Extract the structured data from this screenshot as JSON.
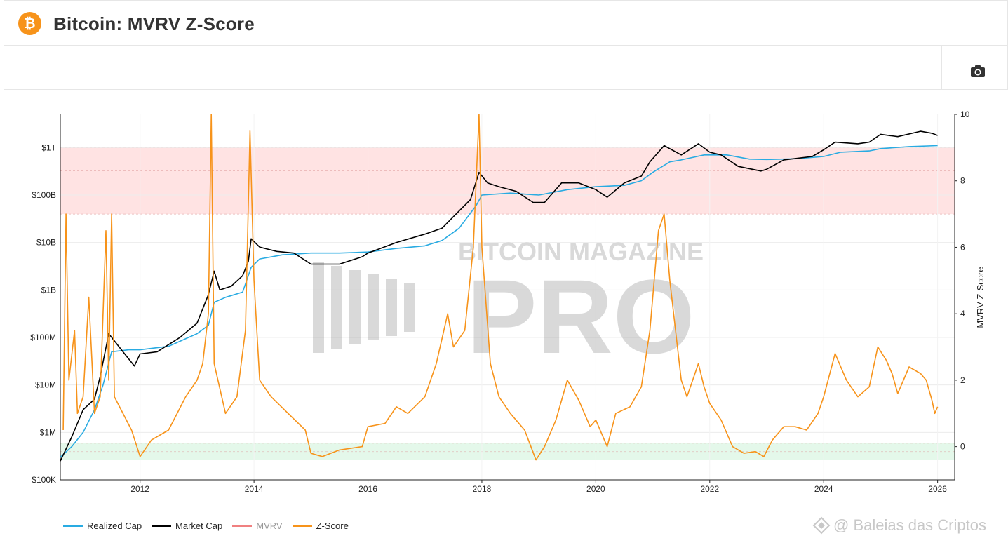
{
  "page": {
    "title": "Bitcoin: MVRV Z-Score",
    "logo_icon": "bitcoin-icon",
    "camera_icon": "camera-icon"
  },
  "colors": {
    "realized_cap": "#29abe2",
    "market_cap": "#000000",
    "mvrv": "#f08080",
    "z_score": "#f7931a",
    "upper_band": "#ffe3e3",
    "lower_band": "#e4f8ea",
    "brand": "#f7931a"
  },
  "watermark": {
    "line1": "BITCOIN MAGAZINE",
    "line2": "PRO"
  },
  "credit": {
    "text": "@ Baleias das Criptos",
    "icon": "diamond-icon"
  },
  "legend": [
    {
      "label": "Realized Cap",
      "color": "#29abe2",
      "active": true
    },
    {
      "label": "Market Cap",
      "color": "#000000",
      "active": true
    },
    {
      "label": "MVRV",
      "color": "#f08080",
      "active": false
    },
    {
      "label": "Z-Score",
      "color": "#f7931a",
      "active": true
    }
  ],
  "chart_data": {
    "type": "line",
    "xlim": [
      2010.6,
      2026.3
    ],
    "x_ticks": [
      {
        "value": 2012,
        "label": "2012"
      },
      {
        "value": 2014,
        "label": "2014"
      },
      {
        "value": 2016,
        "label": "2016"
      },
      {
        "value": 2018,
        "label": "2018"
      },
      {
        "value": 2020,
        "label": "2020"
      },
      {
        "value": 2022,
        "label": "2022"
      },
      {
        "value": 2024,
        "label": "2024"
      },
      {
        "value": 2026,
        "label": "2026"
      }
    ],
    "y_left": {
      "scale": "log",
      "ylim": [
        100000,
        5000000000000
      ],
      "ticks": [
        {
          "value": 100000,
          "label": "$100K"
        },
        {
          "value": 1000000,
          "label": "$1M"
        },
        {
          "value": 10000000,
          "label": "$10M"
        },
        {
          "value": 100000000,
          "label": "$100M"
        },
        {
          "value": 1000000000,
          "label": "$1B"
        },
        {
          "value": 10000000000,
          "label": "$10B"
        },
        {
          "value": 100000000000,
          "label": "$100B"
        },
        {
          "value": 1000000000000,
          "label": "$1T"
        }
      ]
    },
    "y_right": {
      "label": "MVRV Z-Score",
      "scale": "linear",
      "ylim": [
        -1,
        10
      ],
      "ticks": [
        {
          "value": 0,
          "label": "0"
        },
        {
          "value": 2,
          "label": "2"
        },
        {
          "value": 4,
          "label": "4"
        },
        {
          "value": 6,
          "label": "6"
        },
        {
          "value": 8,
          "label": "8"
        },
        {
          "value": 10,
          "label": "10"
        }
      ]
    },
    "bands": [
      {
        "name": "upper",
        "from": 7,
        "to": 9,
        "mid": 8.3,
        "color": "#ffe3e3"
      },
      {
        "name": "lower",
        "from": -0.4,
        "to": 0.1,
        "mid": -0.15,
        "color": "#e4f8ea"
      }
    ],
    "grid": true,
    "legend_position": "bottom-left",
    "series": [
      {
        "name": "Realized Cap",
        "axis": "left",
        "color": "#29abe2",
        "points": [
          [
            2010.6,
            300000
          ],
          [
            2010.8,
            500000
          ],
          [
            2011.0,
            1000000
          ],
          [
            2011.2,
            3000000
          ],
          [
            2011.35,
            10000000
          ],
          [
            2011.5,
            50000000
          ],
          [
            2011.8,
            55000000
          ],
          [
            2012.0,
            55000000
          ],
          [
            2012.5,
            65000000
          ],
          [
            2013.0,
            120000000
          ],
          [
            2013.2,
            180000000
          ],
          [
            2013.3,
            550000000
          ],
          [
            2013.5,
            700000000
          ],
          [
            2013.8,
            900000000
          ],
          [
            2013.95,
            3000000000
          ],
          [
            2014.1,
            4500000000
          ],
          [
            2014.5,
            5500000000
          ],
          [
            2015.0,
            6000000000
          ],
          [
            2015.5,
            6000000000
          ],
          [
            2016.0,
            6300000000
          ],
          [
            2016.5,
            7500000000
          ],
          [
            2017.0,
            8500000000
          ],
          [
            2017.3,
            11000000000
          ],
          [
            2017.6,
            20000000000
          ],
          [
            2017.9,
            60000000000
          ],
          [
            2018.0,
            100000000000
          ],
          [
            2018.5,
            110000000000
          ],
          [
            2019.0,
            100000000000
          ],
          [
            2019.5,
            130000000000
          ],
          [
            2020.0,
            150000000000
          ],
          [
            2020.5,
            160000000000
          ],
          [
            2020.8,
            200000000000
          ],
          [
            2021.0,
            300000000000
          ],
          [
            2021.3,
            500000000000
          ],
          [
            2021.5,
            550000000000
          ],
          [
            2021.9,
            700000000000
          ],
          [
            2022.3,
            700000000000
          ],
          [
            2022.7,
            570000000000
          ],
          [
            2023.0,
            560000000000
          ],
          [
            2023.5,
            580000000000
          ],
          [
            2024.0,
            650000000000
          ],
          [
            2024.3,
            800000000000
          ],
          [
            2024.8,
            850000000000
          ],
          [
            2025.0,
            950000000000
          ],
          [
            2025.5,
            1050000000000
          ],
          [
            2026.0,
            1100000000000
          ]
        ]
      },
      {
        "name": "Market Cap",
        "axis": "left",
        "color": "#000000",
        "points": [
          [
            2010.6,
            250000
          ],
          [
            2010.8,
            800000
          ],
          [
            2011.0,
            3000000
          ],
          [
            2011.2,
            5000000
          ],
          [
            2011.3,
            15000000
          ],
          [
            2011.45,
            120000000
          ],
          [
            2011.7,
            50000000
          ],
          [
            2011.9,
            25000000
          ],
          [
            2012.0,
            45000000
          ],
          [
            2012.3,
            50000000
          ],
          [
            2012.7,
            100000000
          ],
          [
            2013.0,
            200000000
          ],
          [
            2013.2,
            800000000
          ],
          [
            2013.3,
            2500000000
          ],
          [
            2013.4,
            1000000000
          ],
          [
            2013.6,
            1200000000
          ],
          [
            2013.8,
            2000000000
          ],
          [
            2013.9,
            4000000000
          ],
          [
            2013.95,
            12000000000
          ],
          [
            2014.1,
            8000000000
          ],
          [
            2014.4,
            6500000000
          ],
          [
            2014.7,
            6000000000
          ],
          [
            2015.0,
            3500000000
          ],
          [
            2015.5,
            3500000000
          ],
          [
            2015.9,
            5000000000
          ],
          [
            2016.0,
            6000000000
          ],
          [
            2016.5,
            10000000000
          ],
          [
            2017.0,
            15000000000
          ],
          [
            2017.3,
            20000000000
          ],
          [
            2017.5,
            35000000000
          ],
          [
            2017.8,
            80000000000
          ],
          [
            2017.95,
            300000000000
          ],
          [
            2018.1,
            180000000000
          ],
          [
            2018.3,
            150000000000
          ],
          [
            2018.6,
            120000000000
          ],
          [
            2018.9,
            70000000000
          ],
          [
            2019.1,
            70000000000
          ],
          [
            2019.4,
            180000000000
          ],
          [
            2019.7,
            180000000000
          ],
          [
            2020.0,
            130000000000
          ],
          [
            2020.2,
            90000000000
          ],
          [
            2020.5,
            180000000000
          ],
          [
            2020.8,
            250000000000
          ],
          [
            2020.95,
            500000000000
          ],
          [
            2021.2,
            1100000000000
          ],
          [
            2021.5,
            700000000000
          ],
          [
            2021.8,
            1200000000000
          ],
          [
            2022.0,
            800000000000
          ],
          [
            2022.2,
            700000000000
          ],
          [
            2022.5,
            400000000000
          ],
          [
            2022.9,
            320000000000
          ],
          [
            2023.0,
            350000000000
          ],
          [
            2023.3,
            550000000000
          ],
          [
            2023.8,
            650000000000
          ],
          [
            2024.0,
            900000000000
          ],
          [
            2024.2,
            1300000000000
          ],
          [
            2024.6,
            1200000000000
          ],
          [
            2024.8,
            1300000000000
          ],
          [
            2025.0,
            1900000000000
          ],
          [
            2025.3,
            1700000000000
          ],
          [
            2025.7,
            2200000000000
          ],
          [
            2025.9,
            2000000000000
          ],
          [
            2026.0,
            1800000000000
          ]
        ]
      },
      {
        "name": "Z-Score",
        "axis": "right",
        "color": "#f7931a",
        "points": [
          [
            2010.65,
            0.5
          ],
          [
            2010.7,
            7.0
          ],
          [
            2010.75,
            2.0
          ],
          [
            2010.85,
            3.5
          ],
          [
            2010.9,
            1.0
          ],
          [
            2011.0,
            1.5
          ],
          [
            2011.1,
            4.5
          ],
          [
            2011.2,
            1.0
          ],
          [
            2011.3,
            1.5
          ],
          [
            2011.4,
            6.5
          ],
          [
            2011.45,
            2.0
          ],
          [
            2011.5,
            7.0
          ],
          [
            2011.55,
            1.5
          ],
          [
            2011.7,
            1.0
          ],
          [
            2011.85,
            0.5
          ],
          [
            2012.0,
            -0.3
          ],
          [
            2012.2,
            0.2
          ],
          [
            2012.5,
            0.5
          ],
          [
            2012.8,
            1.5
          ],
          [
            2013.0,
            2.0
          ],
          [
            2013.1,
            2.5
          ],
          [
            2013.2,
            4.0
          ],
          [
            2013.25,
            10.0
          ],
          [
            2013.3,
            2.5
          ],
          [
            2013.5,
            1.0
          ],
          [
            2013.7,
            1.5
          ],
          [
            2013.85,
            3.5
          ],
          [
            2013.93,
            9.5
          ],
          [
            2014.0,
            5.0
          ],
          [
            2014.1,
            2.0
          ],
          [
            2014.3,
            1.5
          ],
          [
            2014.6,
            1.0
          ],
          [
            2014.9,
            0.5
          ],
          [
            2015.0,
            -0.2
          ],
          [
            2015.2,
            -0.3
          ],
          [
            2015.5,
            -0.1
          ],
          [
            2015.9,
            0.0
          ],
          [
            2016.0,
            0.6
          ],
          [
            2016.3,
            0.7
          ],
          [
            2016.5,
            1.2
          ],
          [
            2016.7,
            1.0
          ],
          [
            2017.0,
            1.5
          ],
          [
            2017.2,
            2.5
          ],
          [
            2017.4,
            4.0
          ],
          [
            2017.5,
            3.0
          ],
          [
            2017.7,
            3.5
          ],
          [
            2017.85,
            6.0
          ],
          [
            2017.95,
            10.0
          ],
          [
            2018.0,
            6.0
          ],
          [
            2018.15,
            2.5
          ],
          [
            2018.3,
            1.5
          ],
          [
            2018.5,
            1.0
          ],
          [
            2018.75,
            0.5
          ],
          [
            2018.95,
            -0.4
          ],
          [
            2019.1,
            0.0
          ],
          [
            2019.3,
            0.8
          ],
          [
            2019.5,
            2.0
          ],
          [
            2019.7,
            1.4
          ],
          [
            2019.9,
            0.6
          ],
          [
            2020.0,
            0.8
          ],
          [
            2020.2,
            0.0
          ],
          [
            2020.35,
            1.0
          ],
          [
            2020.6,
            1.2
          ],
          [
            2020.8,
            1.8
          ],
          [
            2020.95,
            3.5
          ],
          [
            2021.1,
            6.5
          ],
          [
            2021.2,
            7.0
          ],
          [
            2021.3,
            5.0
          ],
          [
            2021.5,
            2.0
          ],
          [
            2021.6,
            1.5
          ],
          [
            2021.8,
            2.5
          ],
          [
            2021.9,
            1.8
          ],
          [
            2022.0,
            1.3
          ],
          [
            2022.2,
            0.8
          ],
          [
            2022.4,
            0.0
          ],
          [
            2022.6,
            -0.2
          ],
          [
            2022.8,
            -0.15
          ],
          [
            2022.95,
            -0.3
          ],
          [
            2023.1,
            0.2
          ],
          [
            2023.3,
            0.6
          ],
          [
            2023.5,
            0.6
          ],
          [
            2023.7,
            0.5
          ],
          [
            2023.9,
            1.0
          ],
          [
            2024.0,
            1.5
          ],
          [
            2024.2,
            2.8
          ],
          [
            2024.4,
            2.0
          ],
          [
            2024.6,
            1.5
          ],
          [
            2024.8,
            1.8
          ],
          [
            2024.95,
            3.0
          ],
          [
            2025.1,
            2.6
          ],
          [
            2025.2,
            2.2
          ],
          [
            2025.3,
            1.6
          ],
          [
            2025.5,
            2.4
          ],
          [
            2025.7,
            2.2
          ],
          [
            2025.8,
            2.0
          ],
          [
            2025.9,
            1.4
          ],
          [
            2025.95,
            1.0
          ],
          [
            2026.0,
            1.2
          ]
        ]
      }
    ]
  }
}
